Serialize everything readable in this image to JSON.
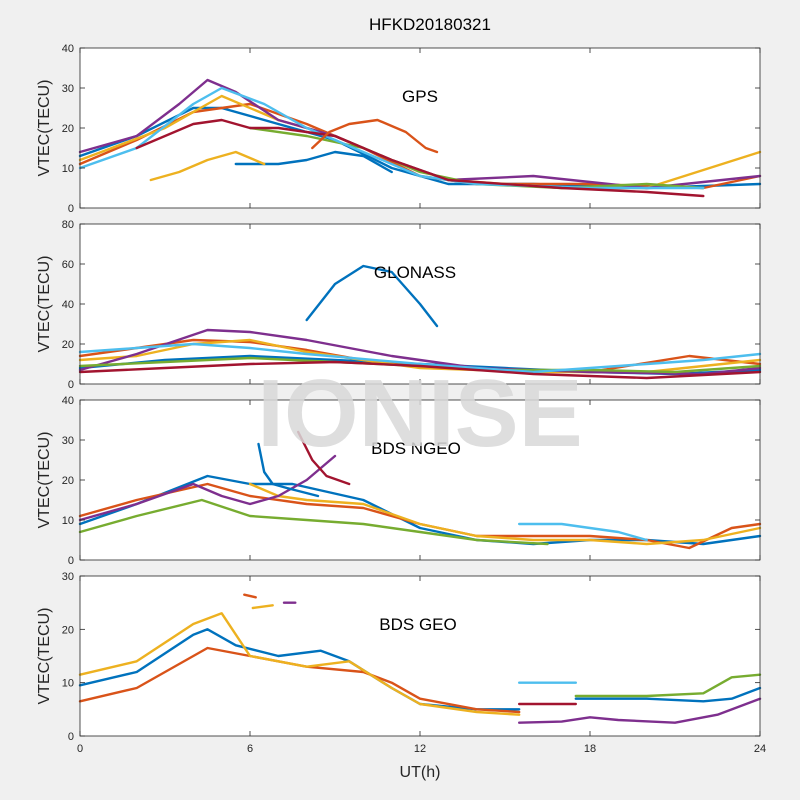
{
  "title": "HFKD20180321",
  "watermark": "IONISE",
  "xlabel": "UT(h)",
  "xlim": [
    0,
    24
  ],
  "xticks": [
    "0",
    "6",
    "12",
    "18",
    "24"
  ],
  "palette": [
    "#0072BD",
    "#D95319",
    "#EDB120",
    "#7E2F8E",
    "#77AC30",
    "#4DBEEE",
    "#A2142F"
  ],
  "chart_data": [
    {
      "type": "line",
      "title": "GPS",
      "ylabel": "VTEC(TECU)",
      "ylim": [
        0,
        40
      ],
      "yticks": [
        "0",
        "10",
        "20",
        "30",
        "40"
      ],
      "series": [
        {
          "x": [
            0,
            2,
            4,
            5,
            7,
            9,
            11,
            13,
            16,
            20,
            24
          ],
          "y": [
            13,
            18,
            25,
            25,
            21,
            17,
            10,
            6,
            6,
            5,
            6
          ]
        },
        {
          "x": [
            0,
            2,
            4,
            6,
            8,
            10,
            12,
            14,
            18,
            22,
            24
          ],
          "y": [
            11,
            17,
            24,
            26,
            21,
            15,
            8,
            6,
            6,
            5,
            8
          ]
        },
        {
          "x": [
            0,
            3,
            5,
            7,
            9,
            11,
            13,
            15,
            17,
            20,
            24
          ],
          "y": [
            12,
            20,
            28,
            22,
            18,
            12,
            7,
            6,
            5,
            5,
            14
          ]
        },
        {
          "x": [
            0,
            2,
            3.5,
            4.5,
            5.5,
            7,
            9,
            11,
            13,
            16,
            20,
            24
          ],
          "y": [
            14,
            18,
            26,
            32,
            29,
            22,
            18,
            12,
            7,
            8,
            5,
            8
          ]
        },
        {
          "x": [
            6,
            8,
            10,
            12,
            14,
            17,
            20,
            22
          ],
          "y": [
            20,
            18,
            15,
            9,
            6,
            5,
            6,
            5
          ]
        },
        {
          "x": [
            0,
            2,
            4,
            5,
            6.5,
            8,
            10,
            12,
            14,
            18,
            22
          ],
          "y": [
            10,
            15,
            26,
            30,
            26,
            20,
            14,
            8,
            6,
            5,
            5
          ]
        },
        {
          "x": [
            2,
            4,
            5,
            6,
            7,
            9,
            11,
            13,
            17,
            20,
            22
          ],
          "y": [
            15,
            21,
            22,
            20,
            20,
            18,
            12,
            7,
            5,
            4,
            3
          ]
        },
        {
          "x": [
            5.5,
            7,
            8,
            9,
            10,
            11
          ],
          "y": [
            11,
            11,
            12,
            14,
            13,
            9
          ]
        },
        {
          "x": [
            8.2,
            8.8,
            9.5,
            10.5,
            11.5,
            12.2,
            12.6
          ],
          "y": [
            15,
            19,
            21,
            22,
            19,
            15,
            14
          ]
        },
        {
          "x": [
            2.5,
            3.5,
            4.5,
            5.5,
            6.5
          ],
          "y": [
            7,
            9,
            12,
            14,
            11
          ]
        }
      ]
    },
    {
      "type": "line",
      "title": "GLONASS",
      "ylabel": "VTEC(TECU)",
      "ylim": [
        0,
        80
      ],
      "yticks": [
        "0",
        "20",
        "40",
        "60",
        "80"
      ],
      "series": [
        {
          "x": [
            0,
            3,
            6,
            9,
            12,
            15,
            18,
            21,
            24
          ],
          "y": [
            8,
            12,
            14,
            12,
            10,
            8,
            6,
            5,
            7
          ]
        },
        {
          "x": [
            0,
            2,
            4,
            6,
            8,
            10,
            12,
            15,
            18,
            21.5,
            24
          ],
          "y": [
            14,
            18,
            22,
            21,
            17,
            12,
            9,
            7,
            6,
            14,
            10
          ]
        },
        {
          "x": [
            0,
            2,
            4,
            6,
            8,
            10,
            12,
            16,
            20,
            24
          ],
          "y": [
            12,
            14,
            20,
            22,
            16,
            12,
            8,
            6,
            6,
            12
          ]
        },
        {
          "x": [
            0,
            2,
            4.5,
            6,
            8,
            11,
            14,
            18,
            22,
            24
          ],
          "y": [
            7,
            15,
            27,
            26,
            22,
            14,
            8,
            6,
            5,
            8
          ]
        },
        {
          "x": [
            0,
            3,
            6,
            9,
            12,
            15,
            18,
            21,
            24
          ],
          "y": [
            9,
            11,
            13,
            11,
            9,
            7,
            7,
            6,
            9
          ]
        },
        {
          "x": [
            0,
            2,
            4,
            6,
            8,
            12,
            16,
            20,
            22,
            24
          ],
          "y": [
            16,
            18,
            20,
            18,
            15,
            10,
            6,
            10,
            12,
            15
          ]
        },
        {
          "x": [
            0,
            3,
            6,
            9,
            12,
            16,
            20,
            24
          ],
          "y": [
            6,
            8,
            10,
            11,
            9,
            5,
            3,
            6
          ]
        },
        {
          "x": [
            8,
            9,
            10,
            11,
            12,
            12.6
          ],
          "y": [
            32,
            50,
            59,
            56,
            40,
            29
          ]
        }
      ]
    },
    {
      "type": "line",
      "title": "BDS NGEO",
      "ylabel": "VTEC(TECU)",
      "ylim": [
        0,
        40
      ],
      "yticks": [
        "0",
        "10",
        "20",
        "30",
        "40"
      ],
      "series": [
        {
          "x": [
            0,
            2,
            4.5,
            6,
            7.5,
            10,
            12,
            14,
            16,
            18,
            20,
            22,
            24
          ],
          "y": [
            9,
            14,
            21,
            19,
            19,
            15,
            8,
            5,
            4,
            5,
            5,
            4,
            6
          ]
        },
        {
          "x": [
            0,
            2,
            4.5,
            6,
            8,
            10,
            12,
            14,
            16,
            18,
            20,
            21.5,
            23,
            24
          ],
          "y": [
            11,
            15,
            19,
            16,
            14,
            13,
            9,
            6,
            6,
            6,
            5,
            3,
            8,
            9
          ]
        },
        {
          "x": [
            6,
            7,
            8,
            10,
            12,
            14,
            16,
            18,
            20,
            22,
            24
          ],
          "y": [
            19,
            16,
            15,
            14,
            9,
            6,
            5,
            5,
            4,
            5,
            8
          ]
        },
        {
          "x": [
            0,
            2,
            4,
            5,
            6,
            7,
            8,
            9
          ],
          "y": [
            10,
            14,
            19,
            16,
            14,
            16,
            20,
            26
          ]
        },
        {
          "x": [
            0,
            2,
            4.3,
            6,
            8,
            10,
            12,
            14,
            16.5
          ],
          "y": [
            7,
            11,
            15,
            11,
            10,
            9,
            7,
            5,
            4
          ]
        },
        {
          "x": [
            15.5,
            17,
            18,
            19,
            20
          ],
          "y": [
            9,
            9,
            8,
            7,
            5
          ]
        },
        {
          "x": [
            7.7,
            8.2,
            8.7,
            9.5
          ],
          "y": [
            32,
            25,
            21,
            19
          ]
        },
        {
          "x": [
            6.3,
            6.5,
            6.8,
            7.3,
            8.4
          ],
          "y": [
            29,
            22,
            19,
            18,
            16
          ]
        }
      ]
    },
    {
      "type": "line",
      "title": "BDS GEO",
      "ylabel": "VTEC(TECU)",
      "ylim": [
        0,
        30
      ],
      "yticks": [
        "0",
        "10",
        "20",
        "30"
      ],
      "series": [
        {
          "x": [
            0,
            2,
            4,
            4.5,
            5.5,
            7,
            8.5,
            9.5,
            11,
            12,
            14,
            15.5
          ],
          "y": [
            9.5,
            12,
            19,
            20,
            17,
            15,
            16,
            14,
            9,
            6,
            5,
            5
          ]
        },
        {
          "x": [
            0,
            2,
            4.5,
            6,
            8,
            10,
            11,
            12,
            14,
            15.5
          ],
          "y": [
            6.5,
            9,
            16.5,
            15,
            13,
            12,
            10,
            7,
            5,
            4.5
          ]
        },
        {
          "x": [
            0,
            2,
            4,
            5,
            6,
            8,
            9.5,
            11,
            12,
            14,
            15.5
          ],
          "y": [
            11.5,
            14,
            21,
            23,
            15,
            13,
            14,
            9,
            6,
            4.5,
            4
          ]
        },
        {
          "x": [
            15.5,
            17,
            18,
            19,
            21,
            22.5,
            24
          ],
          "y": [
            2.5,
            2.7,
            3.5,
            3,
            2.5,
            4,
            7
          ]
        },
        {
          "x": [
            17.5,
            20,
            22,
            23,
            24
          ],
          "y": [
            7.5,
            7.5,
            8,
            11,
            11.5
          ]
        },
        {
          "x": [
            15.5,
            17.5
          ],
          "y": [
            10,
            10
          ]
        },
        {
          "x": [
            15.5,
            17.5
          ],
          "y": [
            6,
            6
          ]
        },
        {
          "x": [
            17.5,
            20,
            22,
            23,
            24
          ],
          "y": [
            7,
            7,
            6.5,
            7,
            9
          ]
        },
        {
          "x": [
            5.8,
            6.2
          ],
          "y": [
            26.5,
            26
          ]
        },
        {
          "x": [
            6.1,
            6.8
          ],
          "y": [
            24,
            24.5
          ]
        },
        {
          "x": [
            7.2,
            7.6
          ],
          "y": [
            25,
            25
          ]
        }
      ]
    }
  ]
}
